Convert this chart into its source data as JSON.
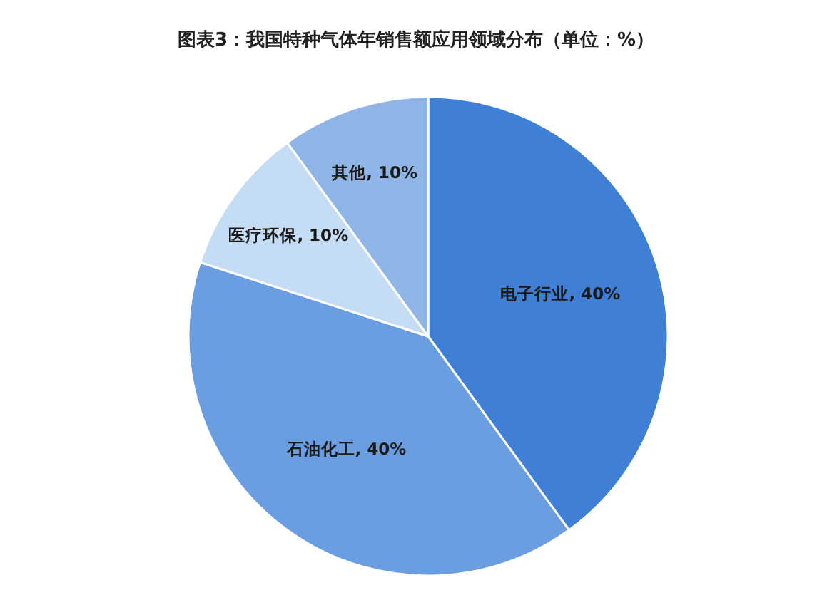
{
  "chart_data": {
    "type": "pie",
    "title": "图表3：我国特种气体年销售额应用领域分布（单位：%）",
    "categories": [
      "电子行业",
      "石油化工",
      "医疗环保",
      "其他"
    ],
    "values": [
      40,
      40,
      10,
      10
    ],
    "value_labels": [
      "40%",
      "40%",
      "10%",
      "10%"
    ],
    "colors": [
      "#3f7fd6",
      "#6a9ee0",
      "#c5dcf5",
      "#8fb5e6"
    ],
    "legend": false
  }
}
